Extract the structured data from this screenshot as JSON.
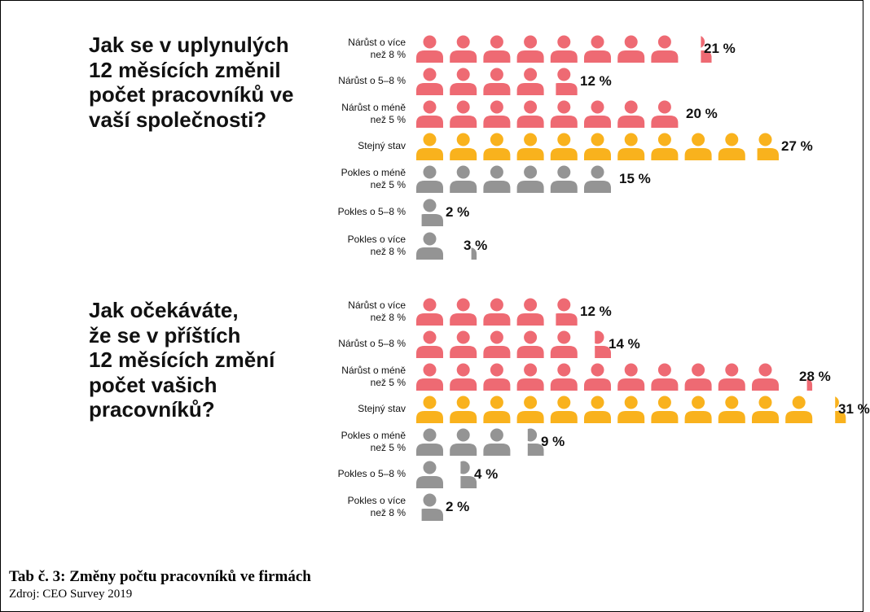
{
  "colors": {
    "increase": "#EE6A73",
    "same": "#F9B21D",
    "decrease": "#949494"
  },
  "questions": [
    "Jak se v uplynulých\n12 měsících změnil\npočet pracovníků ve\nvaší společnosti?",
    "Jak očekáváte,\nže se v příštích\n12 měsících změní\npočet vašich\npracovníků?"
  ],
  "caption": {
    "title": "Tab č. 3: Změny počtu pracovníků ve firmách",
    "source": "Zdroj: CEO Survey 2019"
  },
  "chart_data": [
    {
      "type": "pictograph",
      "unit_percent": 2.5,
      "categories": [
        "Nárůst o více\nnež 8 %",
        "Nárůst o 5–8 %",
        "Nárůst o méně\nnež 5 %",
        "Stejný stav",
        "Pokles o méně\nnež 5 %",
        "Pokles o 5–8 %",
        "Pokles o více\nnež 8 %"
      ],
      "values": [
        21,
        12,
        20,
        27,
        15,
        2,
        3
      ],
      "labels": [
        "21 %",
        "12 %",
        "20 %",
        "27 %",
        "15 %",
        "2 %",
        "3 %"
      ],
      "color_keys": [
        "increase",
        "increase",
        "increase",
        "same",
        "decrease",
        "decrease",
        "decrease"
      ]
    },
    {
      "type": "pictograph",
      "unit_percent": 2.5,
      "categories": [
        "Nárůst o více\nnež 8 %",
        "Nárůst o 5–8 %",
        "Nárůst o méně\nnež 5 %",
        "Stejný stav",
        "Pokles o méně\nnež 5 %",
        "Pokles o 5–8 %",
        "Pokles o více\nnež 8 %"
      ],
      "values": [
        12,
        14,
        28,
        31,
        9,
        4,
        2
      ],
      "labels": [
        "12 %",
        "14 %",
        "28 %",
        "31 %",
        "9 %",
        "4 %",
        "2 %"
      ],
      "color_keys": [
        "increase",
        "increase",
        "increase",
        "same",
        "decrease",
        "decrease",
        "decrease"
      ]
    }
  ]
}
